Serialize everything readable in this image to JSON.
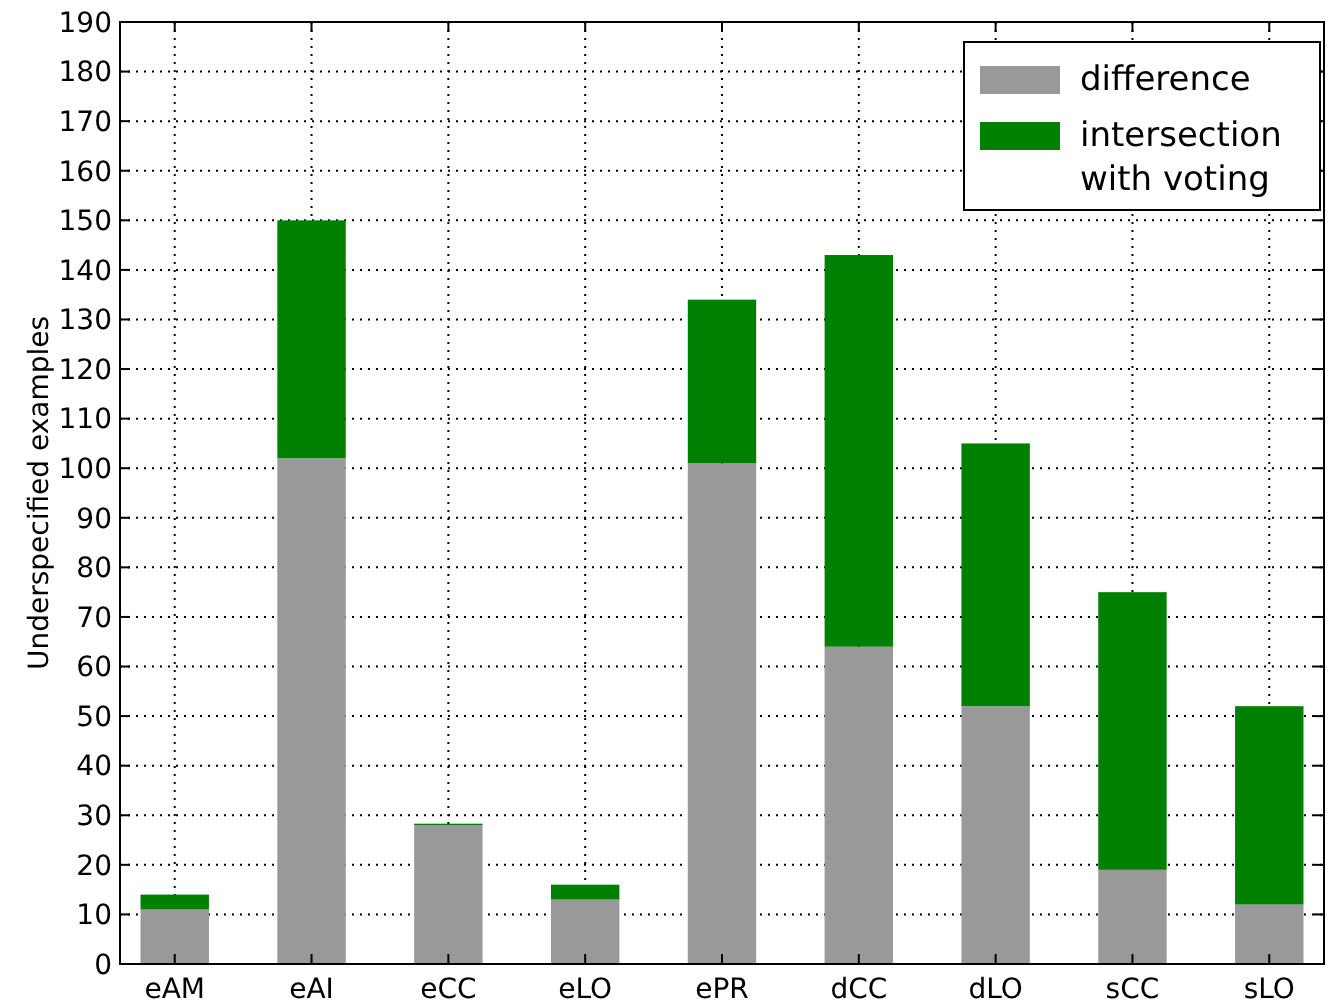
{
  "chart_data": {
    "type": "bar",
    "ylabel": "Underspecified examples",
    "categories": [
      "eAM",
      "eAI",
      "eCC",
      "eLO",
      "ePR",
      "dCC",
      "dLO",
      "sCC",
      "sLO"
    ],
    "stacked": true,
    "series": [
      {
        "name": "difference",
        "color": "#999999",
        "values": [
          11,
          102,
          28,
          13,
          101,
          64,
          52,
          19,
          12
        ]
      },
      {
        "name": "intersection\nwith voting",
        "color": "#008000",
        "values": [
          3,
          48,
          0.3,
          3,
          33,
          79,
          53,
          56,
          40
        ]
      }
    ],
    "ylim": [
      0,
      190
    ],
    "yticks": [
      0,
      10,
      20,
      30,
      40,
      50,
      60,
      70,
      80,
      90,
      100,
      110,
      120,
      130,
      140,
      150,
      160,
      170,
      180,
      190
    ],
    "grid": true,
    "legend": "top right"
  }
}
